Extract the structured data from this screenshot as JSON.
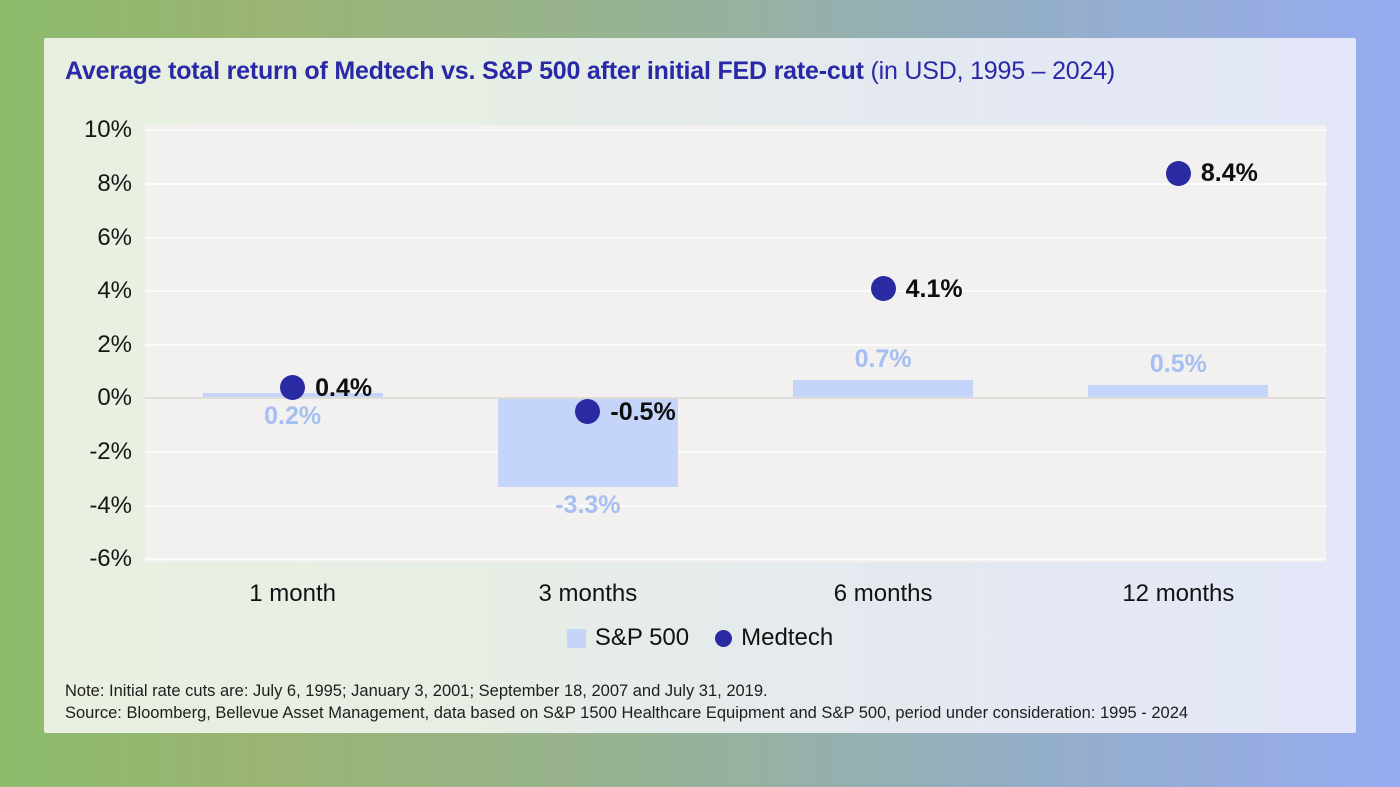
{
  "title": {
    "main": "Average total return of Medtech vs. S&P 500 after initial FED rate-cut",
    "suffix": " (in USD, 1995 – 2024)"
  },
  "chart_data": {
    "type": "bar",
    "title": "Average total return of Medtech vs. S&P 500 after initial FED rate-cut (in USD, 1995 – 2024)",
    "categories": [
      "1 month",
      "3 months",
      "6 months",
      "12 months"
    ],
    "series": [
      {
        "name": "S&P 500",
        "mark": "bar",
        "values": [
          0.2,
          -3.3,
          0.7,
          0.5
        ],
        "labels": [
          "0.2%",
          "-3.3%",
          "0.7%",
          "0.5%"
        ],
        "label_placement": [
          "below",
          "below",
          "above",
          "above"
        ]
      },
      {
        "name": "Medtech",
        "mark": "point",
        "values": [
          0.4,
          -0.5,
          4.1,
          8.4
        ],
        "labels": [
          "0.4%",
          "-0.5%",
          "4.1%",
          "8.4%"
        ]
      }
    ],
    "xlabel": "",
    "ylabel": "",
    "ylim": [
      -6.1,
      10.2
    ],
    "yticks": [
      10,
      8,
      6,
      4,
      2,
      0,
      -2,
      -4,
      -6
    ],
    "ytick_labels": [
      "10%",
      "8%",
      "6%",
      "4%",
      "2%",
      "0%",
      "-2%",
      "-4%",
      "-6%"
    ],
    "grid": true,
    "legend_position": "bottom"
  },
  "legend": {
    "items": [
      {
        "label": "S&P 500",
        "swatch": "square"
      },
      {
        "label": "Medtech",
        "swatch": "circle"
      }
    ]
  },
  "footer": {
    "note": "Note: Initial rate cuts are: July 6, 1995; January 3, 2001; September 18, 2007 and July 31, 2019.",
    "source": "Source: Bloomberg, Bellevue Asset Management, data based on S&P 1500 Healthcare Equipment and S&P 500, period under consideration: 1995 - 2024"
  },
  "colors": {
    "background_left": "#8dbc6c",
    "background_right": "#97abf1",
    "card_left": "#e9f0e2",
    "card_right": "#e3e7f8",
    "plot_background": "#f2f1ef",
    "gridline": "#fbfbfa",
    "zero_line": "#deddda",
    "bar_fill": "#c5d4f9",
    "bar_label": "#a5bff2",
    "dot_fill": "#2a2aa2",
    "dot_label": "#0e0e0e",
    "title_text": "#2929a8"
  }
}
